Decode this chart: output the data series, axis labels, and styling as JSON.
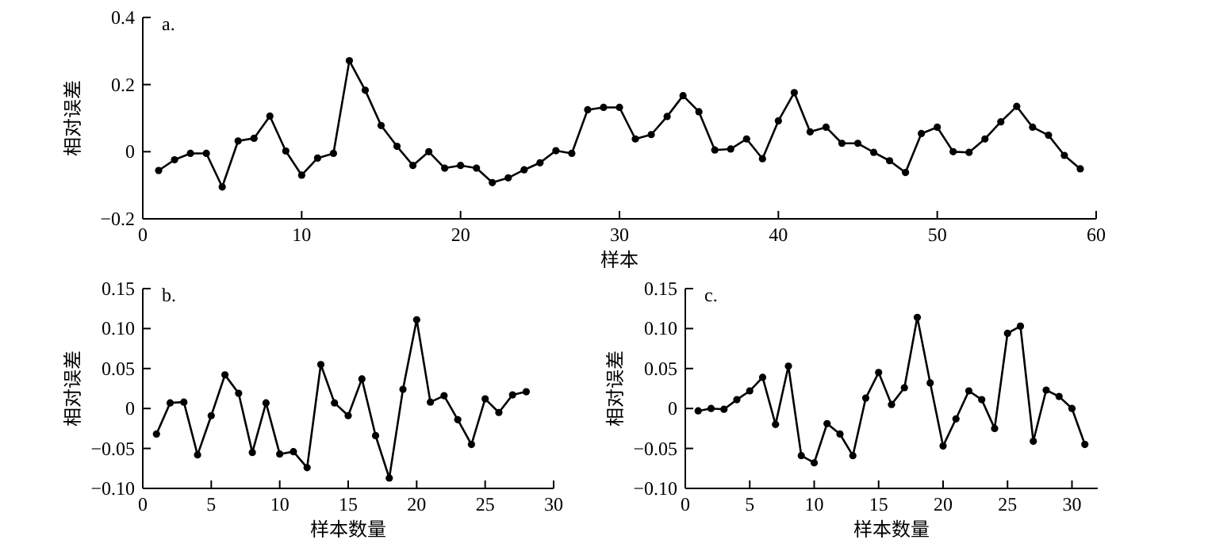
{
  "chart_data": [
    {
      "type": "line",
      "annotations": [
        "a."
      ],
      "xlabel": "样本",
      "ylabel": "相对误差",
      "marker": "circle",
      "line_style": "solid",
      "x": [
        1,
        2,
        3,
        4,
        5,
        6,
        7,
        8,
        9,
        10,
        11,
        12,
        13,
        14,
        15,
        16,
        17,
        18,
        19,
        20,
        21,
        22,
        23,
        24,
        25,
        26,
        27,
        28,
        29,
        30,
        31,
        32,
        33,
        34,
        35,
        36,
        37,
        38,
        39,
        40,
        41,
        42,
        43,
        44,
        45,
        46,
        47,
        48,
        49,
        50,
        51,
        52,
        53,
        54,
        55,
        56,
        57,
        58,
        59
      ],
      "series": [
        {
          "color": "#000000",
          "values": [
            -0.056,
            -0.024,
            -0.005,
            -0.005,
            -0.105,
            0.032,
            0.04,
            0.106,
            0.002,
            -0.07,
            -0.019,
            -0.005,
            0.271,
            0.183,
            0.078,
            0.016,
            -0.041,
            0.0,
            -0.049,
            -0.041,
            -0.049,
            -0.092,
            -0.078,
            -0.054,
            -0.033,
            0.003,
            -0.005,
            0.125,
            0.132,
            0.132,
            0.038,
            0.051,
            0.105,
            0.167,
            0.119,
            0.005,
            0.008,
            0.038,
            -0.021,
            0.092,
            0.176,
            0.059,
            0.073,
            0.025,
            0.025,
            -0.002,
            -0.027,
            -0.062,
            0.054,
            0.073,
            0.0,
            -0.002,
            0.038,
            0.089,
            0.135,
            0.073,
            0.049,
            -0.011,
            -0.051
          ]
        }
      ],
      "xlim": [
        0,
        60
      ],
      "ylim": [
        -0.2,
        0.4
      ],
      "xticks": [
        0,
        10,
        20,
        30,
        40,
        50,
        60
      ],
      "yticks": [
        {
          "value": -0.2,
          "label": "−0.2"
        },
        0,
        0.2,
        0.4
      ]
    },
    {
      "type": "line",
      "annotations": [
        "b."
      ],
      "xlabel": "样本数量",
      "ylabel": "相对误差",
      "marker": "circle",
      "line_style": "solid",
      "x": [
        1,
        2,
        3,
        4,
        5,
        6,
        7,
        8,
        9,
        10,
        11,
        12,
        13,
        14,
        15,
        16,
        17,
        18,
        19,
        20,
        21,
        22,
        23,
        24,
        25,
        26,
        27,
        28
      ],
      "series": [
        {
          "color": "#000000",
          "values": [
            -0.032,
            0.007,
            0.008,
            -0.058,
            -0.009,
            0.042,
            0.019,
            -0.055,
            0.007,
            -0.057,
            -0.054,
            -0.074,
            0.055,
            0.007,
            -0.009,
            0.037,
            -0.034,
            -0.087,
            0.024,
            0.111,
            0.008,
            0.016,
            -0.014,
            -0.045,
            0.012,
            -0.005,
            0.017,
            0.021
          ]
        }
      ],
      "xlim": [
        0,
        30
      ],
      "ylim": [
        -0.1,
        0.15
      ],
      "xticks": [
        0,
        5,
        10,
        15,
        20,
        25,
        30
      ],
      "yticks": [
        {
          "value": -0.1,
          "label": "−0.10"
        },
        {
          "value": -0.05,
          "label": "−0.05"
        },
        0,
        {
          "value": 0.05,
          "label": "0.05"
        },
        {
          "value": 0.1,
          "label": "0.10"
        },
        {
          "value": 0.15,
          "label": "0.15"
        }
      ]
    },
    {
      "type": "line",
      "annotations": [
        "c."
      ],
      "xlabel": "样本数量",
      "ylabel": "相对误差",
      "marker": "circle",
      "line_style": "solid",
      "x": [
        1,
        2,
        3,
        4,
        5,
        6,
        7,
        8,
        9,
        10,
        11,
        12,
        13,
        14,
        15,
        16,
        17,
        18,
        19,
        20,
        21,
        22,
        23,
        24,
        25,
        26,
        27,
        28,
        29,
        30,
        31
      ],
      "series": [
        {
          "color": "#000000",
          "values": [
            -0.003,
            0.0,
            -0.001,
            0.011,
            0.022,
            0.039,
            -0.02,
            0.053,
            -0.059,
            -0.068,
            -0.019,
            -0.032,
            -0.059,
            0.013,
            0.045,
            0.005,
            0.026,
            0.114,
            0.032,
            -0.047,
            -0.013,
            0.022,
            0.011,
            -0.025,
            0.094,
            0.103,
            -0.041,
            0.023,
            0.015,
            0.0,
            -0.045
          ]
        }
      ],
      "xlim": [
        0,
        32
      ],
      "ylim": [
        -0.1,
        0.15
      ],
      "xticks": [
        0,
        5,
        10,
        15,
        20,
        25,
        30
      ],
      "yticks": [
        {
          "value": -0.1,
          "label": "−0.10"
        },
        {
          "value": -0.05,
          "label": "−0.05"
        },
        0,
        {
          "value": 0.05,
          "label": "0.05"
        },
        {
          "value": 0.1,
          "label": "0.10"
        },
        {
          "value": 0.15,
          "label": "0.15"
        }
      ]
    }
  ]
}
